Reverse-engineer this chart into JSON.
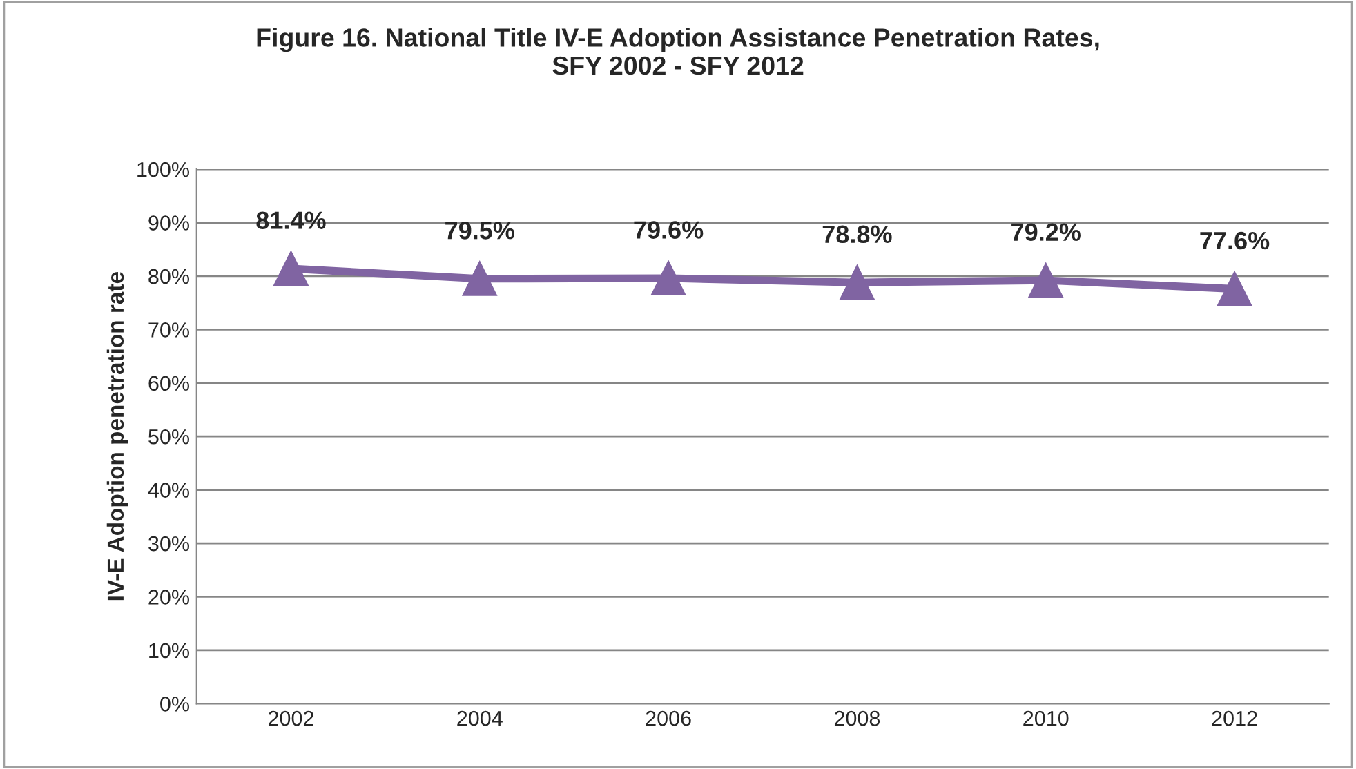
{
  "chart_data": {
    "type": "line",
    "title": "Figure 16. National Title IV-E Adoption Assistance Penetration Rates,\nSFY 2002 - SFY 2012",
    "ylabel": "IV-E Adoption penetration rate",
    "categories": [
      "2002",
      "2004",
      "2006",
      "2008",
      "2010",
      "2012"
    ],
    "series": [
      {
        "color": "#8064a2",
        "values": [
          81.4,
          79.5,
          79.6,
          78.8,
          79.2,
          77.6
        ],
        "value_labels": [
          "81.4%",
          "79.5%",
          "79.6%",
          "78.8%",
          "79.2%",
          "77.6%"
        ]
      }
    ],
    "ylim": [
      0,
      100
    ],
    "yticks": [
      {
        "value": 0,
        "label": "0%"
      },
      {
        "value": 10,
        "label": "10%"
      },
      {
        "value": 20,
        "label": "20%"
      },
      {
        "value": 30,
        "label": "30%"
      },
      {
        "value": 40,
        "label": "40%"
      },
      {
        "value": 50,
        "label": "50%"
      },
      {
        "value": 60,
        "label": "60%"
      },
      {
        "value": 70,
        "label": "70%"
      },
      {
        "value": 80,
        "label": "80%"
      },
      {
        "value": 90,
        "label": "90%"
      },
      {
        "value": 100,
        "label": "100%"
      }
    ],
    "grid": "y",
    "marker": "triangle",
    "line_style": "solid"
  }
}
